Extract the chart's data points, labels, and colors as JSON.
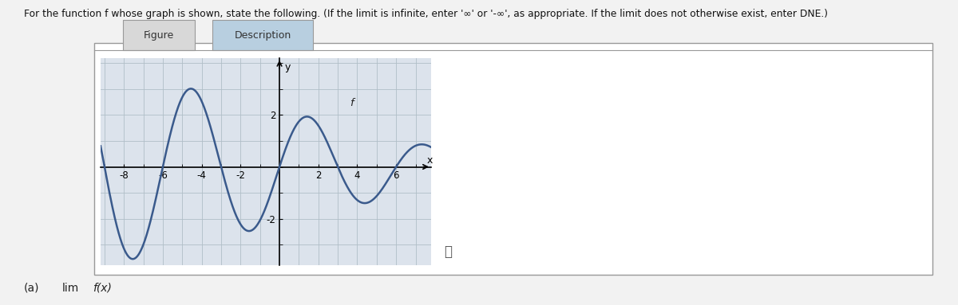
{
  "title_text": "For the function f whose graph is shown, state the following. (If the limit is infinite, enter '∞' or '-∞', as appropriate. If the limit does not otherwise exist, enter DNE.)",
  "tab1": "Figure",
  "tab2": "Description",
  "graph_bg": "#dce3ec",
  "grid_color": "#b0bec8",
  "curve_color": "#3a5a8c",
  "axis_color": "#000000",
  "xlim": [
    -9.2,
    7.8
  ],
  "ylim": [
    -3.8,
    4.2
  ],
  "xticks": [
    -8,
    -6,
    -4,
    -2,
    2,
    4,
    6
  ],
  "yticks": [
    -2,
    2
  ],
  "xlabel": "x",
  "ylabel": "y",
  "f_label": "f",
  "fig_width": 12.0,
  "fig_height": 3.83,
  "page_bg": "#f2f2f2",
  "border_color": "#999999"
}
